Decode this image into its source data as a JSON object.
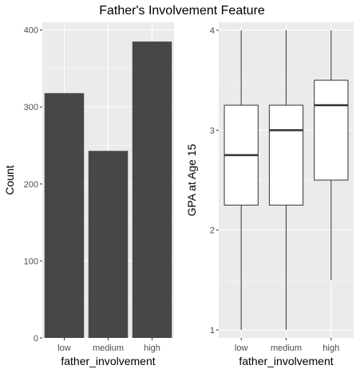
{
  "figure": {
    "title": "Father's Involvement Feature"
  },
  "colors": {
    "panel_background": "#ebebeb",
    "grid_major": "#ffffff",
    "bar_fill": "#474747",
    "box_fill": "#ffffff",
    "box_stroke": "#333333",
    "tick_text": "#4d4d4d"
  },
  "chart_data": [
    {
      "type": "bar",
      "categories": [
        "low",
        "medium",
        "high"
      ],
      "values": [
        318,
        243,
        385
      ],
      "xlabel": "father_involvement",
      "ylabel": "Count",
      "ylim": [
        0,
        410
      ],
      "yticks": [
        0,
        100,
        200,
        300,
        400
      ],
      "grid": true
    },
    {
      "type": "boxplot",
      "categories": [
        "low",
        "medium",
        "high"
      ],
      "boxes": [
        {
          "min": 1,
          "q1": 2.25,
          "median": 2.75,
          "q3": 3.25,
          "max": 4
        },
        {
          "min": 1,
          "q1": 2.25,
          "median": 3.0,
          "q3": 3.25,
          "max": 4
        },
        {
          "min": 1.5,
          "q1": 2.5,
          "median": 3.25,
          "q3": 3.5,
          "max": 4
        }
      ],
      "xlabel": "father_involvement",
      "ylabel": "GPA at Age 15",
      "ylim": [
        0.92,
        4.08
      ],
      "yticks": [
        1,
        2,
        3,
        4
      ],
      "grid": true
    }
  ]
}
